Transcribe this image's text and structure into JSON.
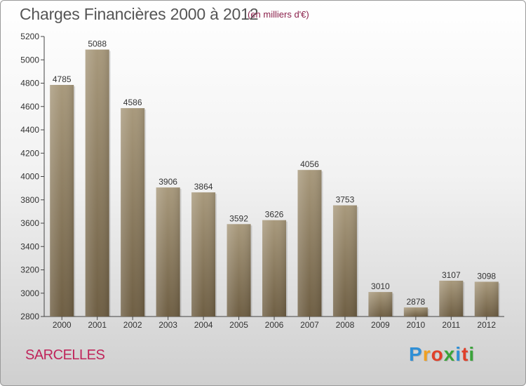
{
  "chart_data": {
    "type": "bar",
    "title": "Charges Financières 2000 à 2012",
    "subtitle": "(en milliers d'€)",
    "categories": [
      "2000",
      "2001",
      "2002",
      "2003",
      "2004",
      "2005",
      "2006",
      "2007",
      "2008",
      "2009",
      "2010",
      "2011",
      "2012"
    ],
    "values": [
      4785,
      5088,
      4586,
      3906,
      3864,
      3592,
      3626,
      4056,
      3753,
      3010,
      2878,
      3107,
      3098
    ],
    "ylim": [
      2800,
      5200
    ],
    "yticks": [
      2800,
      3000,
      3200,
      3400,
      3600,
      3800,
      4000,
      4200,
      4400,
      4600,
      4800,
      5000,
      5200
    ],
    "grid": false,
    "bar_color_top": "#a8997c",
    "bar_color_bottom": "#6e5e43"
  },
  "commune": "SARCELLES",
  "brand": {
    "letters": [
      "P",
      "r",
      "o",
      "x",
      "i",
      "t",
      "i"
    ],
    "colors": [
      "#2f8fd6",
      "#f0a020",
      "#e0402a",
      "#3aa33a",
      "#2f8fd6",
      "#e0402a",
      "#3aa33a"
    ]
  }
}
